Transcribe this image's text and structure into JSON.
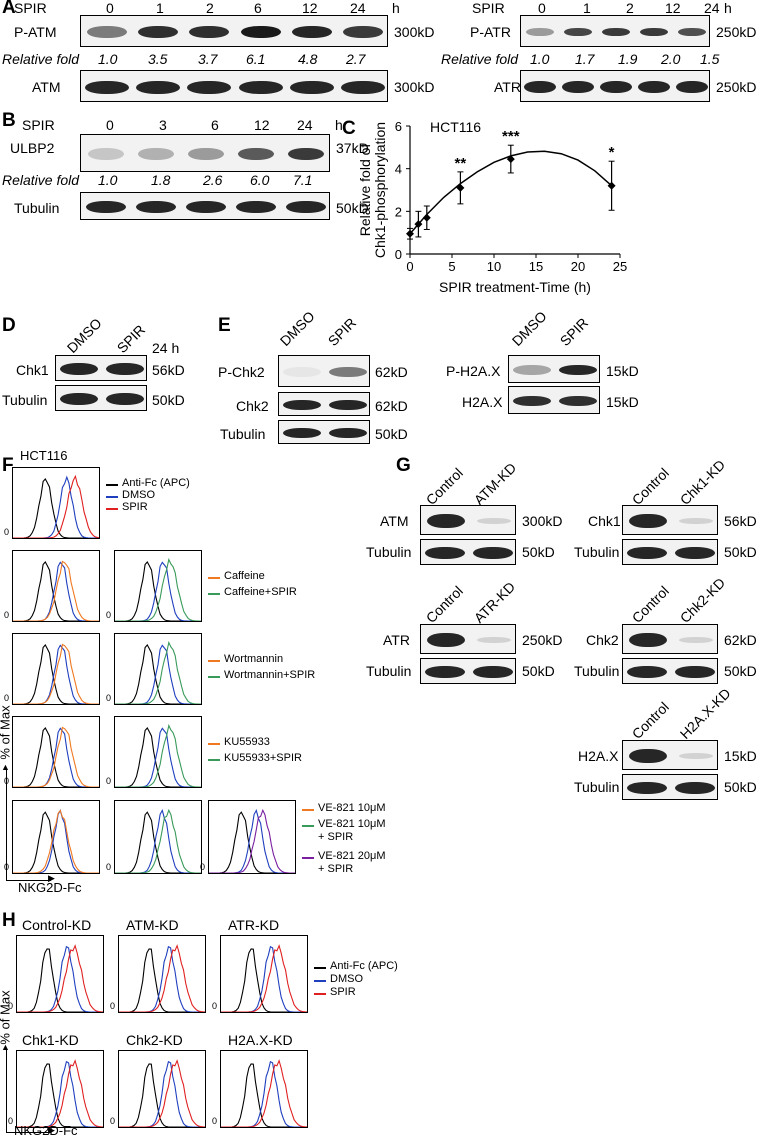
{
  "panels": {
    "A": {
      "label": "A",
      "left": {
        "treatment": "SPIR",
        "unit": "h",
        "times": [
          "0",
          "1",
          "2",
          "6",
          "12",
          "24"
        ],
        "phospho_label": "P-ATM",
        "phospho_size": "300kD",
        "fold_label": "Relative fold",
        "folds": [
          "1.0",
          "3.5",
          "3.7",
          "6.1",
          "4.8",
          "2.7"
        ],
        "total_label": "ATM",
        "total_size": "300kD"
      },
      "right": {
        "treatment": "SPIR",
        "unit": "h",
        "times": [
          "0",
          "1",
          "2",
          "12",
          "24"
        ],
        "phospho_label": "P-ATR",
        "phospho_size": "250kD",
        "fold_label": "Relative fold",
        "folds": [
          "1.0",
          "1.7",
          "1.9",
          "2.0",
          "1.5"
        ],
        "total_label": "ATR",
        "total_size": "250kD"
      }
    },
    "B": {
      "label": "B",
      "treatment": "SPIR",
      "unit": "h",
      "times": [
        "0",
        "3",
        "6",
        "12",
        "24"
      ],
      "target_label": "ULBP2",
      "target_size": "37kD",
      "fold_label": "Relative fold",
      "folds": [
        "1.0",
        "1.8",
        "2.6",
        "6.0",
        "7.1"
      ],
      "loading_label": "Tubulin",
      "loading_size": "50kD"
    },
    "C": {
      "label": "C",
      "cell_line": "HCT116"
    },
    "D": {
      "label": "D",
      "lanes": [
        "DMSO",
        "SPIR"
      ],
      "time": "24 h",
      "rows": [
        {
          "label": "Chk1",
          "size": "56kD"
        },
        {
          "label": "Tubulin",
          "size": "50kD"
        }
      ]
    },
    "E": {
      "label": "E",
      "left": {
        "lanes": [
          "DMSO",
          "SPIR"
        ],
        "rows": [
          {
            "label": "P-Chk2",
            "size": "62kD"
          },
          {
            "label": "Chk2",
            "size": "62kD"
          },
          {
            "label": "Tubulin",
            "size": "50kD"
          }
        ]
      },
      "right": {
        "lanes": [
          "DMSO",
          "SPIR"
        ],
        "rows": [
          {
            "label": "P-H2A.X",
            "size": "15kD"
          },
          {
            "label": "H2A.X",
            "size": "15kD"
          }
        ]
      }
    },
    "F": {
      "label": "F",
      "cell_line": "HCT116",
      "ylabel": "% of Max",
      "xlabel": "NKG2D-Fc",
      "zero": "0",
      "legend_top": [
        {
          "text": "Anti-Fc (APC)",
          "color": "#000000"
        },
        {
          "text": "DMSO",
          "color": "#1f3fbf"
        },
        {
          "text": "SPIR",
          "color": "#e02020"
        }
      ],
      "legend_caffeine": [
        {
          "text": "Caffeine",
          "color": "#f07820"
        },
        {
          "text": "Caffeine+SPIR",
          "color": "#3a9a5a"
        }
      ],
      "legend_wortmannin": [
        {
          "text": "Wortmannin",
          "color": "#f07820"
        },
        {
          "text": "Wortmannin+SPIR",
          "color": "#3a9a5a"
        }
      ],
      "legend_ku": [
        {
          "text": "KU55933",
          "color": "#f07820"
        },
        {
          "text": "KU55933+SPIR",
          "color": "#3a9a5a"
        }
      ],
      "legend_ve": [
        {
          "line1": "VE-821 10μM",
          "line2": "",
          "color": "#f07820"
        },
        {
          "line1": "VE-821 10μM",
          "line2": "+ SPIR",
          "color": "#3a9a5a"
        },
        {
          "line1": "VE-821 20μM",
          "line2": "+ SPIR",
          "color": "#7a1fa0"
        }
      ]
    },
    "G": {
      "label": "G",
      "blots": [
        {
          "lanes": [
            "Control",
            "ATM-KD"
          ],
          "target": "ATM",
          "size": "300kD",
          "loading": "Tubulin",
          "lsize": "50kD"
        },
        {
          "lanes": [
            "Control",
            "Chk1-KD"
          ],
          "target": "Chk1",
          "size": "56kD",
          "loading": "Tubulin",
          "lsize": "50kD"
        },
        {
          "lanes": [
            "Control",
            "ATR-KD"
          ],
          "target": "ATR",
          "size": "250kD",
          "loading": "Tubulin",
          "lsize": "50kD"
        },
        {
          "lanes": [
            "Control",
            "Chk2-KD"
          ],
          "target": "Chk2",
          "size": "62kD",
          "loading": "Tubulin",
          "lsize": "50kD"
        },
        {
          "lanes": [
            "Control",
            "H2A.X-KD"
          ],
          "target": "H2A.X",
          "size": "15kD",
          "loading": "Tubulin",
          "lsize": "50kD"
        }
      ]
    },
    "H": {
      "label": "H",
      "ylabel": "% of Max",
      "xlabel": "NKG2D-Fc",
      "zero": "0",
      "titles": [
        "Control-KD",
        "ATM-KD",
        "ATR-KD",
        "Chk1-KD",
        "Chk2-KD",
        "H2A.X-KD"
      ],
      "legend": [
        {
          "text": "Anti-Fc (APC)",
          "color": "#000000"
        },
        {
          "text": "DMSO",
          "color": "#1f3fbf"
        },
        {
          "text": "SPIR",
          "color": "#e02020"
        }
      ]
    }
  },
  "chart_data": {
    "type": "line",
    "title": "HCT116",
    "xlabel": "SPIR treatment-Time (h)",
    "ylabel": "Relative fold of Chk1-phosphorylation",
    "xlim": [
      0,
      25
    ],
    "ylim": [
      0,
      6
    ],
    "xticks": [
      "0",
      "5",
      "10",
      "15",
      "20",
      "25"
    ],
    "yticks": [
      "0",
      "2",
      "4",
      "6"
    ],
    "points": [
      {
        "x": 0,
        "y": 0.95,
        "err": 0.25,
        "sig": ""
      },
      {
        "x": 1,
        "y": 1.4,
        "err": 0.6,
        "sig": ""
      },
      {
        "x": 2,
        "y": 1.7,
        "err": 0.55,
        "sig": ""
      },
      {
        "x": 6,
        "y": 3.1,
        "err": 0.75,
        "sig": "**"
      },
      {
        "x": 12,
        "y": 4.45,
        "err": 0.65,
        "sig": "***"
      },
      {
        "x": 24,
        "y": 3.2,
        "err": 1.15,
        "sig": "*"
      }
    ],
    "fit": [
      [
        0,
        0.95
      ],
      [
        2,
        1.85
      ],
      [
        4,
        2.65
      ],
      [
        6,
        3.3
      ],
      [
        8,
        3.85
      ],
      [
        10,
        4.3
      ],
      [
        12,
        4.6
      ],
      [
        14,
        4.78
      ],
      [
        16,
        4.82
      ],
      [
        18,
        4.7
      ],
      [
        20,
        4.4
      ],
      [
        22,
        3.9
      ],
      [
        24,
        3.2
      ]
    ]
  }
}
